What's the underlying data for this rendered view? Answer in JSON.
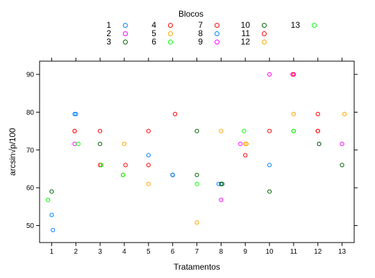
{
  "chart_data": {
    "type": "scatter",
    "title": "",
    "xlabel": "Tratamentos",
    "ylabel": "arcsin√p/100",
    "xlim": [
      0.5,
      13.5
    ],
    "ylim": [
      45.5,
      93.5
    ],
    "x_ticks": [
      "1",
      "2",
      "3",
      "4",
      "5",
      "6",
      "7",
      "8",
      "9",
      "10",
      "11",
      "12",
      "13"
    ],
    "y_ticks": [
      50,
      60,
      70,
      80,
      90
    ],
    "grid": false,
    "legend": {
      "title": "Blocos",
      "placement": "top"
    },
    "series": [
      {
        "name": "1",
        "color": "#0080ff",
        "x": [
          1.05,
          1.0,
          1.95,
          5.0,
          6.0,
          8.0,
          10.0
        ],
        "y": [
          48.8,
          52.8,
          79.5,
          68.6,
          63.4,
          61.0,
          66.0
        ]
      },
      {
        "name": "2",
        "color": "#ff00ff",
        "x": [
          1.95,
          8.0,
          10.0,
          10.95,
          12.05,
          13.0
        ],
        "y": [
          71.6,
          56.8,
          90.0,
          90.0,
          71.6,
          71.6
        ]
      },
      {
        "name": "3",
        "color": "#006400",
        "x": [
          1.0,
          3.0,
          6.0,
          7.0,
          7.0,
          8.05,
          10.0,
          11.0,
          12.05,
          13.0
        ],
        "y": [
          59.0,
          71.6,
          63.4,
          75.0,
          63.4,
          61.0,
          59.0,
          75.0,
          71.6,
          66.0
        ]
      },
      {
        "name": "4",
        "color": "#ff0000",
        "x": [
          1.95,
          3.0,
          3.95,
          5.0,
          6.1,
          9.0,
          10.0,
          12.0
        ],
        "y": [
          75.0,
          66.0,
          63.4,
          66.0,
          79.5,
          68.6,
          75.0,
          75.0
        ]
      },
      {
        "name": "5",
        "color": "#ffa500",
        "x": [
          4.0,
          5.0,
          7.0,
          8.0,
          9.0,
          11.0,
          13.1
        ],
        "y": [
          71.6,
          61.0,
          50.8,
          75.0,
          71.6,
          79.5,
          79.5
        ]
      },
      {
        "name": "6",
        "color": "#00ff00",
        "x": [
          0.85,
          2.1,
          3.05,
          3.95,
          7.0,
          8.95
        ],
        "y": [
          56.8,
          71.6,
          66.0,
          63.4,
          61.0,
          75.0
        ]
      },
      {
        "name": "7",
        "color": "#ff0000",
        "x": [
          1.95,
          3.0,
          4.05,
          5.0,
          12.0
        ],
        "y": [
          75.0,
          75.0,
          66.0,
          75.0,
          79.5
        ]
      },
      {
        "name": "8",
        "color": "#0080ff",
        "x": [
          2.0,
          6.0,
          7.9
        ],
        "y": [
          79.5,
          63.4,
          61.0
        ]
      },
      {
        "name": "9",
        "color": "#ff00ff",
        "x": [
          8.8,
          11.0
        ],
        "y": [
          71.6,
          90.0
        ]
      },
      {
        "name": "10",
        "color": "#006400",
        "x": [
          8.0
        ],
        "y": [
          61.0
        ]
      },
      {
        "name": "11",
        "color": "#ff0000",
        "x": [
          11.0,
          12.0
        ],
        "y": [
          90.0,
          75.0
        ]
      },
      {
        "name": "12",
        "color": "#ffa500",
        "x": [
          9.05
        ],
        "y": [
          71.6
        ]
      },
      {
        "name": "13",
        "color": "#00ff00",
        "x": [
          11.0
        ],
        "y": [
          75.0
        ]
      }
    ]
  }
}
